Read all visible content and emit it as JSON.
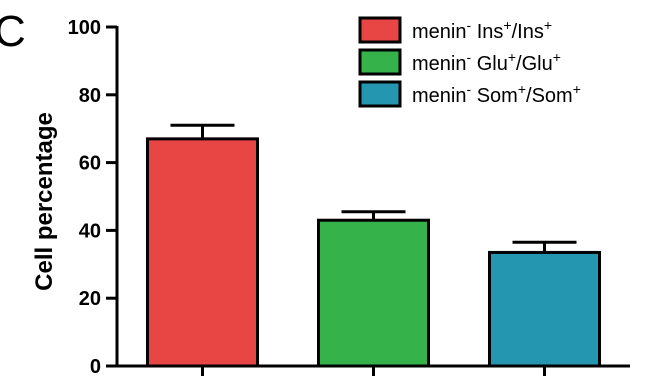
{
  "panel_letter": "C",
  "chart_data": {
    "type": "bar",
    "title": "",
    "xlabel": "",
    "ylabel": "Cell percentage",
    "ylim": [
      0,
      100
    ],
    "yticks": [
      0,
      20,
      40,
      60,
      80,
      100
    ],
    "categories": [
      "",
      "",
      ""
    ],
    "series": [
      {
        "values": [
          67,
          43,
          33.5
        ],
        "errors": [
          4,
          2.5,
          3
        ],
        "colors": [
          "#e84545",
          "#35b34a",
          "#2596b0"
        ]
      }
    ],
    "legend": {
      "position": "top-right",
      "entries": [
        {
          "prefix": "menin",
          "sup1": "-",
          "mid": " Ins",
          "sup2": "+",
          "mid2": "/Ins",
          "sup3": "+",
          "color": "#e84545"
        },
        {
          "prefix": "menin",
          "sup1": "-",
          "mid": " Glu",
          "sup2": "+",
          "mid2": "/Glu",
          "sup3": "+",
          "color": "#35b34a"
        },
        {
          "prefix": "menin",
          "sup1": "-",
          "mid": " Som",
          "sup2": "+",
          "mid2": "/Som",
          "sup3": "+",
          "color": "#2596b0"
        }
      ]
    },
    "grid": false
  }
}
